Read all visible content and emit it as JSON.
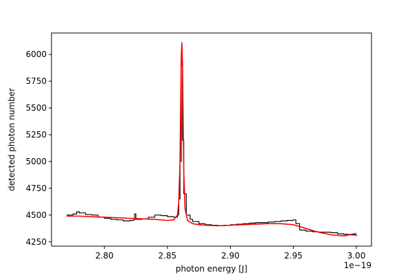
{
  "chart_data": {
    "type": "line",
    "title": "",
    "xlabel": "photon energy [J]",
    "ylabel": "detected photon number",
    "x_offset_label": "1e−19",
    "xlim": [
      2.758,
      3.012
    ],
    "ylim": [
      4210,
      6200
    ],
    "x_ticks": [
      2.8,
      2.85,
      2.9,
      2.95,
      3.0
    ],
    "x_tick_labels": [
      "2.80",
      "2.85",
      "2.90",
      "2.95",
      "3.00"
    ],
    "y_ticks": [
      4250,
      4500,
      4750,
      5000,
      5250,
      5500,
      5750,
      6000
    ],
    "y_tick_labels": [
      "4250",
      "4500",
      "4750",
      "5000",
      "5250",
      "5500",
      "5750",
      "6000"
    ],
    "grid": false,
    "series": [
      {
        "color": "#000000",
        "style": "step",
        "x": [
          2.77,
          2.775,
          2.778,
          2.78,
          2.785,
          2.79,
          2.795,
          2.8,
          2.805,
          2.81,
          2.815,
          2.82,
          2.823,
          2.824,
          2.825,
          2.83,
          2.835,
          2.84,
          2.845,
          2.85,
          2.855,
          2.858,
          2.859,
          2.86,
          2.861,
          2.8615,
          2.862,
          2.863,
          2.865,
          2.868,
          2.87,
          2.875,
          2.88,
          2.885,
          2.89,
          2.895,
          2.9,
          2.905,
          2.91,
          2.915,
          2.92,
          2.925,
          2.93,
          2.935,
          2.94,
          2.945,
          2.95,
          2.952,
          2.955,
          2.96,
          2.965,
          2.97,
          2.975,
          2.98,
          2.985,
          2.99,
          2.995,
          3.0
        ],
        "values": [
          4500,
          4510,
          4530,
          4520,
          4505,
          4500,
          4480,
          4470,
          4460,
          4455,
          4445,
          4450,
          4455,
          4510,
          4460,
          4465,
          4480,
          4500,
          4495,
          4485,
          4480,
          4500,
          4650,
          5000,
          5950,
          5900,
          5200,
          4700,
          4500,
          4460,
          4440,
          4420,
          4410,
          4405,
          4400,
          4405,
          4410,
          4415,
          4420,
          4425,
          4430,
          4430,
          4435,
          4440,
          4445,
          4450,
          4455,
          4420,
          4360,
          4350,
          4345,
          4340,
          4340,
          4335,
          4325,
          4320,
          4315,
          4305
        ]
      },
      {
        "color": "#ff0000",
        "style": "line",
        "x": [
          2.77,
          2.78,
          2.79,
          2.8,
          2.81,
          2.82,
          2.83,
          2.84,
          2.85,
          2.855,
          2.858,
          2.859,
          2.86,
          2.8605,
          2.861,
          2.8615,
          2.862,
          2.8625,
          2.863,
          2.864,
          2.866,
          2.87,
          2.875,
          2.88,
          2.89,
          2.9,
          2.91,
          2.92,
          2.93,
          2.94,
          2.95,
          2.96,
          2.97,
          2.98,
          2.99,
          3.0
        ],
        "values": [
          4490,
          4490,
          4485,
          4480,
          4475,
          4470,
          4465,
          4460,
          4450,
          4455,
          4500,
          4620,
          5000,
          5500,
          5980,
          6110,
          5900,
          5400,
          4900,
          4560,
          4450,
          4420,
          4410,
          4405,
          4400,
          4405,
          4410,
          4415,
          4420,
          4420,
          4410,
          4375,
          4340,
          4315,
          4305,
          4330
        ]
      }
    ]
  }
}
